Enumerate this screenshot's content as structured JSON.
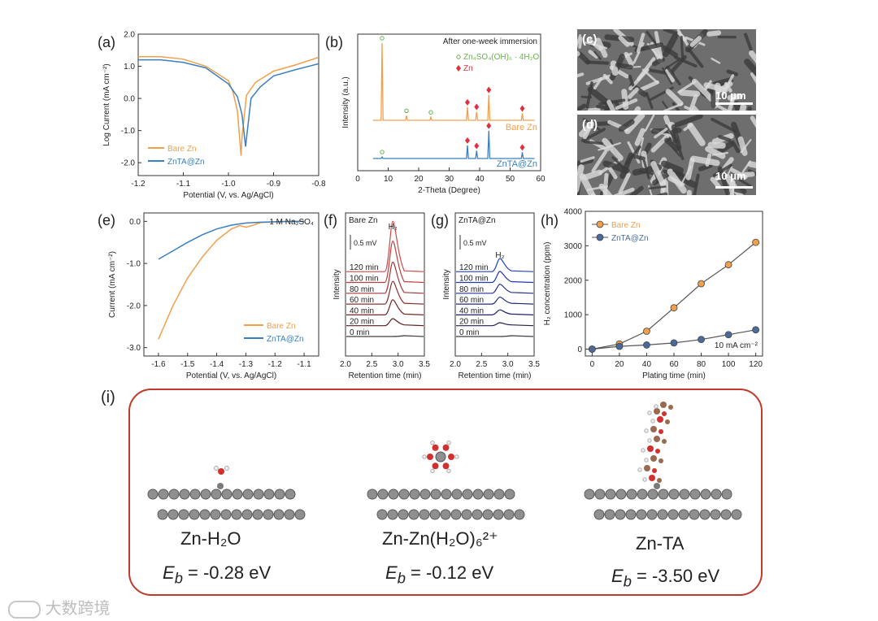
{
  "panel_labels": {
    "a": "(a)",
    "b": "(b)",
    "c": "(c)",
    "d": "(d)",
    "e": "(e)",
    "f": "(f)",
    "g": "(g)",
    "h": "(h)",
    "i": "(i)"
  },
  "chart_data": [
    {
      "id": "a",
      "type": "line",
      "xlabel": "Potential (V, vs. Ag/AgCl)",
      "ylabel": "Log Current (mA cm⁻²)",
      "xlim": [
        -1.2,
        -0.8
      ],
      "ylim": [
        -2.4,
        2.0
      ],
      "xticks": [
        "-1.2",
        "-1.1",
        "-1.0",
        "-0.9",
        "-0.8"
      ],
      "yticks": [
        "2.0",
        "1.0",
        "0.0",
        "-1.0",
        "-2.0"
      ],
      "legend_position": "bottom-left",
      "series": [
        {
          "name": "Bare Zn",
          "color": "#f0a04b",
          "x": [
            -1.2,
            -1.15,
            -1.1,
            -1.05,
            -1.0,
            -0.99,
            -0.98,
            -0.972,
            -0.97,
            -0.96,
            -0.94,
            -0.9,
            -0.85,
            -0.8
          ],
          "y": [
            1.3,
            1.3,
            1.22,
            1.0,
            0.55,
            0.2,
            -0.4,
            -1.78,
            -1.2,
            0.1,
            0.5,
            0.85,
            1.05,
            1.28
          ]
        },
        {
          "name": "ZnTA@Zn",
          "color": "#3a7fbf",
          "x": [
            -1.2,
            -1.15,
            -1.1,
            -1.05,
            -1.0,
            -0.98,
            -0.97,
            -0.962,
            -0.958,
            -0.95,
            -0.93,
            -0.9,
            -0.85,
            -0.8
          ],
          "y": [
            1.2,
            1.2,
            1.12,
            0.95,
            0.45,
            0.05,
            -0.5,
            -1.5,
            -1.0,
            0.0,
            0.35,
            0.7,
            0.9,
            1.08
          ]
        }
      ]
    },
    {
      "id": "b",
      "type": "line",
      "xlabel": "2-Theta (Degree)",
      "ylabel": "Intensity (a.u.)",
      "xlim": [
        0,
        60
      ],
      "xticks": [
        "0",
        "10",
        "20",
        "30",
        "40",
        "50",
        "60"
      ],
      "annotations": [
        "After one-week immersion",
        "Zn₄SO₄(OH)₆ · 4H₂O",
        "Zn"
      ],
      "series": [
        {
          "name": "Bare Zn",
          "color": "#f0a04b",
          "peaks": [
            [
              8,
              1.0
            ],
            [
              16,
              0.06
            ],
            [
              24,
              0.04
            ],
            [
              36,
              0.17
            ],
            [
              39,
              0.11
            ],
            [
              43,
              0.33
            ],
            [
              54,
              0.09
            ]
          ]
        },
        {
          "name": "ZnTA@Zn",
          "color": "#3a7fbf",
          "peaks": [
            [
              8,
              0.02
            ],
            [
              36,
              0.17
            ],
            [
              39,
              0.1
            ],
            [
              43,
              0.36
            ],
            [
              54,
              0.08
            ]
          ]
        }
      ]
    },
    {
      "id": "e",
      "type": "line",
      "xlabel": "Potential (V, vs. Ag/AgCl)",
      "ylabel": "Current (mA cm⁻²)",
      "xlim": [
        -1.65,
        -1.05
      ],
      "ylim": [
        -3.2,
        0.2
      ],
      "xticks": [
        "-1.6",
        "-1.5",
        "-1.4",
        "-1.3",
        "-1.2",
        "-1.1"
      ],
      "yticks": [
        "0.0",
        "-1.0",
        "-2.0",
        "-3.0"
      ],
      "annotation": "1 M Na₂SO₄",
      "legend_position": "bottom-right",
      "series": [
        {
          "name": "Bare Zn",
          "color": "#f0a04b",
          "x": [
            -1.6,
            -1.55,
            -1.5,
            -1.45,
            -1.4,
            -1.35,
            -1.32,
            -1.3,
            -1.27,
            -1.25,
            -1.2,
            -1.15,
            -1.1
          ],
          "y": [
            -2.8,
            -2.0,
            -1.35,
            -0.85,
            -0.45,
            -0.18,
            -0.1,
            -0.14,
            -0.08,
            -0.03,
            -0.01,
            0,
            0
          ]
        },
        {
          "name": "ZnTA@Zn",
          "color": "#3a7fbf",
          "x": [
            -1.6,
            -1.55,
            -1.5,
            -1.45,
            -1.4,
            -1.35,
            -1.3,
            -1.25,
            -1.2,
            -1.15,
            -1.1
          ],
          "y": [
            -0.9,
            -0.7,
            -0.5,
            -0.32,
            -0.18,
            -0.09,
            -0.04,
            -0.02,
            -0.01,
            0,
            0
          ]
        }
      ]
    },
    {
      "id": "f",
      "type": "line",
      "title": "Bare Zn",
      "xlabel": "Retention time (min)",
      "ylabel": "Intensity",
      "xlim": [
        2.0,
        3.5
      ],
      "xticks": [
        "2.0",
        "2.5",
        "3.0",
        "3.5"
      ],
      "peak_label": "H₂",
      "scale_label": "0.5 mV",
      "peak_x": 2.9,
      "series_labels": [
        "120 min",
        "100 min",
        "80 min",
        "60 min",
        "40 min",
        "20 min",
        "0 min"
      ],
      "peak_heights": [
        1.0,
        0.82,
        0.62,
        0.45,
        0.3,
        0.14,
        0.0
      ],
      "colors": [
        "#d04848",
        "#b84040",
        "#a03838",
        "#883030",
        "#702828",
        "#582020",
        "#404040"
      ]
    },
    {
      "id": "g",
      "type": "line",
      "title": "ZnTA@Zn",
      "xlabel": "Retention time (min)",
      "ylabel": "Intensity",
      "xlim": [
        2.0,
        3.5
      ],
      "xticks": [
        "2.0",
        "2.5",
        "3.0",
        "3.5"
      ],
      "peak_label": "H₂",
      "scale_label": "0.5 mV",
      "peak_x": 2.85,
      "series_labels": [
        "120 min",
        "100 min",
        "80 min",
        "60 min",
        "40 min",
        "20 min",
        "0 min"
      ],
      "peak_heights": [
        0.26,
        0.22,
        0.18,
        0.14,
        0.1,
        0.06,
        0.0
      ],
      "colors": [
        "#2040c8",
        "#2038b0",
        "#203098",
        "#202880",
        "#202068",
        "#202050",
        "#404040"
      ]
    },
    {
      "id": "h",
      "type": "line",
      "xlabel": "Plating time (min)",
      "ylabel": "H₂ concentration (ppm)",
      "xlim": [
        -5,
        125
      ],
      "ylim": [
        -200,
        4000
      ],
      "xticks": [
        "0",
        "20",
        "40",
        "60",
        "80",
        "100",
        "120"
      ],
      "yticks": [
        "0",
        "1000",
        "2000",
        "3000",
        "4000"
      ],
      "annotation": "10 mA cm⁻²",
      "legend_position": "top-left",
      "x": [
        0,
        20,
        40,
        60,
        80,
        100,
        120
      ],
      "series": [
        {
          "name": "Bare Zn",
          "color": "#f0a04b",
          "values": [
            0,
            150,
            520,
            1200,
            1900,
            2450,
            3100
          ]
        },
        {
          "name": "ZnTA@Zn",
          "color": "#4a6a9a",
          "values": [
            0,
            80,
            120,
            180,
            280,
            420,
            560
          ]
        }
      ]
    }
  ],
  "sem_images": {
    "c": {
      "scale": "10 μm"
    },
    "d": {
      "scale": "10 μm"
    }
  },
  "panel_i": {
    "models": [
      {
        "name": "Zn-H₂O",
        "eb": "= -0.28 eV"
      },
      {
        "name": "Zn-Zn(H₂O)₆²⁺",
        "eb": "= -0.12 eV"
      },
      {
        "name": "Zn-TA",
        "eb": "= -3.50 eV"
      }
    ],
    "eb_symbol": "E",
    "eb_sub": "b"
  },
  "watermark": "大数跨境"
}
